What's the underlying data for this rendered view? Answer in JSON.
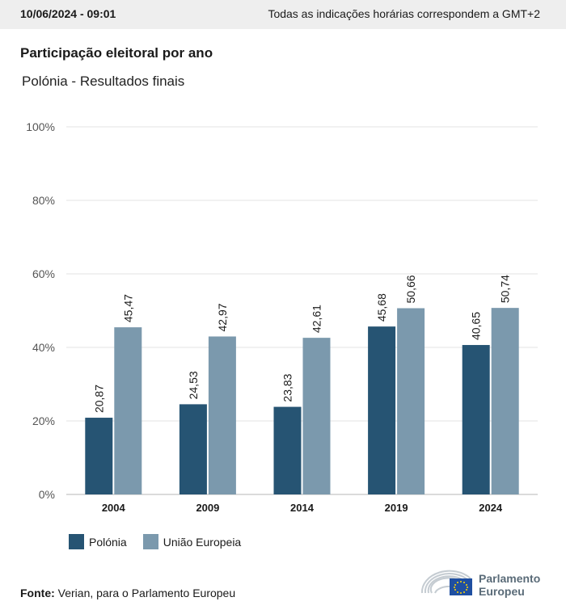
{
  "header": {
    "timestamp": "10/06/2024 - 09:01",
    "timezone_note": "Todas as indicações horárias correspondem a GMT+2"
  },
  "title": "Participação eleitoral por ano",
  "subtitle": "Polónia - Resultados finais",
  "colors": {
    "polonia": "#265473",
    "ue": "#7b99ad",
    "grid": "#e3e3e3",
    "axis": "#b7b7b7"
  },
  "chart_data": {
    "type": "bar",
    "categories": [
      "2004",
      "2009",
      "2014",
      "2019",
      "2024"
    ],
    "series": [
      {
        "name": "Polónia",
        "values": [
          20.87,
          24.53,
          23.83,
          45.68,
          40.65
        ],
        "labels": [
          "20,87",
          "24,53",
          "23,83",
          "45,68",
          "40,65"
        ]
      },
      {
        "name": "União Europeia",
        "values": [
          45.47,
          42.97,
          42.61,
          50.66,
          50.74
        ],
        "labels": [
          "45,47",
          "42,97",
          "42,61",
          "50,66",
          "50,74"
        ]
      }
    ],
    "y_ticks": [
      "0%",
      "20%",
      "40%",
      "60%",
      "80%",
      "100%"
    ],
    "ylim": [
      0,
      100
    ],
    "grid": true,
    "legend": "bottom-left"
  },
  "legend": {
    "polonia": "Polónia",
    "ue": "União Europeia"
  },
  "source": {
    "label": "Fonte:",
    "text": " Verian, para o Parlamento Europeu"
  },
  "logo": {
    "line1": "Parlamento",
    "line2": "Europeu"
  }
}
